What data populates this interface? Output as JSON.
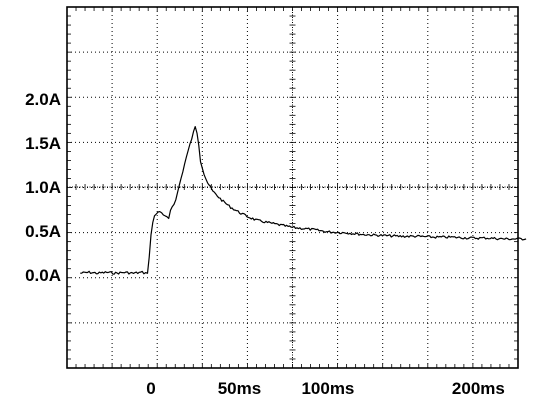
{
  "chart_data": {
    "type": "line",
    "title": "",
    "xlabel": "",
    "ylabel": "",
    "x_ticks": [
      {
        "value": 0,
        "label": "0"
      },
      {
        "value": 50,
        "label": "50ms"
      },
      {
        "value": 100,
        "label": "100ms"
      },
      {
        "value": 200,
        "label": "200ms"
      }
    ],
    "y_ticks": [
      {
        "value": 0.0,
        "label": "0.0A"
      },
      {
        "value": 0.5,
        "label": "0.5A"
      },
      {
        "value": 1.0,
        "label": "1.0A"
      },
      {
        "value": 1.5,
        "label": "1.5A"
      },
      {
        "value": 2.0,
        "label": "2.0A"
      }
    ],
    "grid": true,
    "trace_color": "#000000",
    "series": [
      {
        "points": [
          [
            -40,
            0.02
          ],
          [
            -35,
            0.03
          ],
          [
            -30,
            0.02
          ],
          [
            -25,
            0.03
          ],
          [
            -20,
            0.02
          ],
          [
            -15,
            0.03
          ],
          [
            -10,
            0.02
          ],
          [
            -5,
            0.03
          ],
          [
            -3,
            0.02
          ],
          [
            -2,
            0.03
          ],
          [
            -1,
            0.2
          ],
          [
            0,
            0.45
          ],
          [
            1,
            0.6
          ],
          [
            2,
            0.67
          ],
          [
            3,
            0.7
          ],
          [
            4,
            0.72
          ],
          [
            6,
            0.7
          ],
          [
            8,
            0.66
          ],
          [
            10,
            0.64
          ],
          [
            11,
            0.74
          ],
          [
            12,
            0.78
          ],
          [
            14,
            0.85
          ],
          [
            16,
            1.02
          ],
          [
            18,
            1.18
          ],
          [
            20,
            1.34
          ],
          [
            22,
            1.48
          ],
          [
            24,
            1.62
          ],
          [
            25,
            1.68
          ],
          [
            26,
            1.62
          ],
          [
            27,
            1.48
          ],
          [
            28,
            1.3
          ],
          [
            30,
            1.15
          ],
          [
            32,
            1.05
          ],
          [
            35,
            0.95
          ],
          [
            40,
            0.85
          ],
          [
            45,
            0.77
          ],
          [
            50,
            0.71
          ],
          [
            55,
            0.66
          ],
          [
            60,
            0.62
          ],
          [
            65,
            0.6
          ],
          [
            70,
            0.58
          ],
          [
            75,
            0.56
          ],
          [
            80,
            0.54
          ],
          [
            85,
            0.53
          ],
          [
            90,
            0.52
          ],
          [
            100,
            0.49
          ],
          [
            110,
            0.48
          ],
          [
            120,
            0.46
          ],
          [
            130,
            0.45
          ],
          [
            140,
            0.44
          ],
          [
            150,
            0.44
          ],
          [
            160,
            0.43
          ],
          [
            170,
            0.43
          ],
          [
            180,
            0.42
          ],
          [
            190,
            0.42
          ],
          [
            200,
            0.41
          ],
          [
            210,
            0.41
          ],
          [
            212,
            0.41
          ]
        ]
      }
    ]
  }
}
